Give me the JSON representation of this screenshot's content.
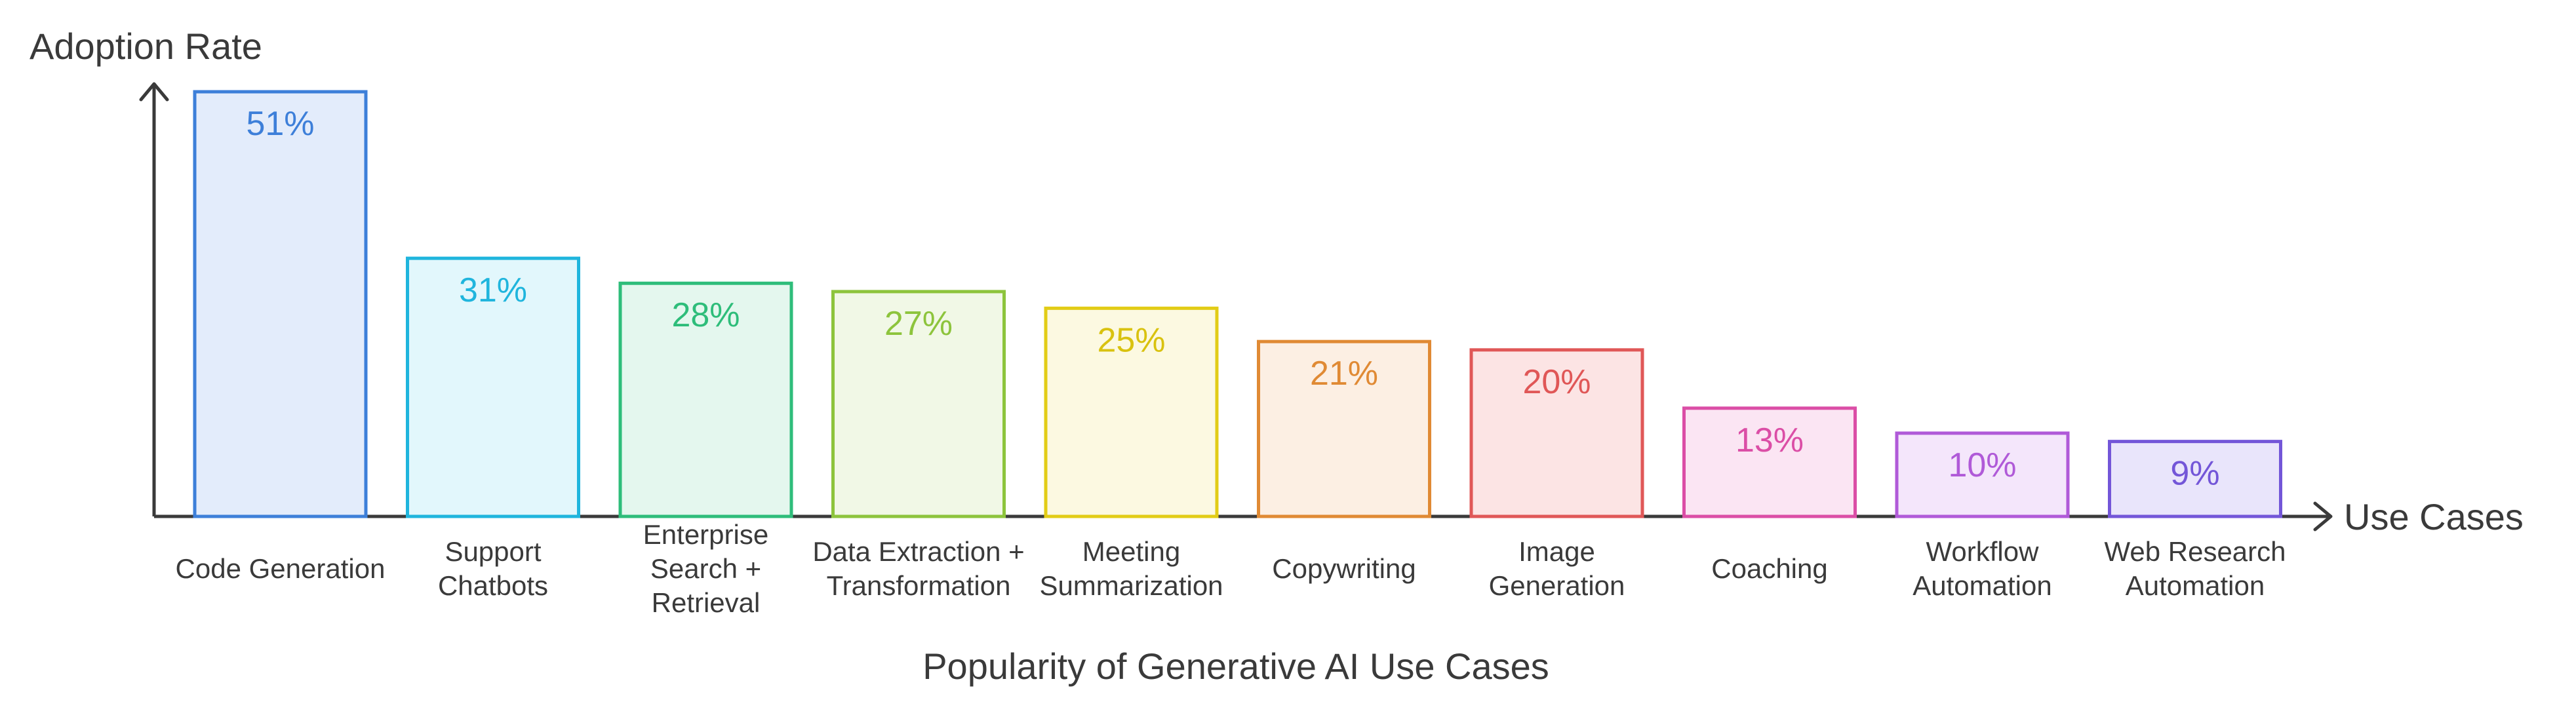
{
  "chart_data": {
    "type": "bar",
    "title": "Popularity of Generative AI Use Cases",
    "xlabel": "Use Cases",
    "ylabel": "Adoption Rate",
    "ylim": [
      0,
      51
    ],
    "grid": false,
    "categories": [
      [
        "Code Generation"
      ],
      [
        "Support",
        "Chatbots"
      ],
      [
        "Enterprise",
        "Search +",
        "Retrieval"
      ],
      [
        "Data Extraction +",
        "Transformation"
      ],
      [
        "Meeting",
        "Summarization"
      ],
      [
        "Copywriting"
      ],
      [
        "Image",
        "Generation"
      ],
      [
        "Coaching"
      ],
      [
        "Workflow",
        "Automation"
      ],
      [
        "Web Research",
        "Automation"
      ]
    ],
    "values": [
      51,
      31,
      28,
      27,
      25,
      21,
      20,
      13,
      10,
      9
    ],
    "value_labels": [
      "51%",
      "31%",
      "28%",
      "27%",
      "25%",
      "21%",
      "20%",
      "13%",
      "10%",
      "9%"
    ],
    "colors": [
      {
        "stroke": "#3d7fd9",
        "fill": "#e3ecfb",
        "text": "#3d7fd9"
      },
      {
        "stroke": "#1fb5dd",
        "fill": "#e2f7fc",
        "text": "#1fb5dd"
      },
      {
        "stroke": "#2ebd7a",
        "fill": "#e4f7ee",
        "text": "#2ebd7a"
      },
      {
        "stroke": "#8dc43c",
        "fill": "#f1f8e6",
        "text": "#8dc43c"
      },
      {
        "stroke": "#e2cc16",
        "fill": "#fcf9e1",
        "text": "#d9c20f"
      },
      {
        "stroke": "#e08a34",
        "fill": "#fcefe3",
        "text": "#e08a34"
      },
      {
        "stroke": "#e05757",
        "fill": "#fce4e4",
        "text": "#e05757"
      },
      {
        "stroke": "#db4ea6",
        "fill": "#fbe5f3",
        "text": "#db4ea6"
      },
      {
        "stroke": "#b05ad8",
        "fill": "#f4e6fb",
        "text": "#b05ad8"
      },
      {
        "stroke": "#7356d8",
        "fill": "#e9e5fb",
        "text": "#7356d8"
      }
    ],
    "axis_color": "#3a3a3a"
  }
}
